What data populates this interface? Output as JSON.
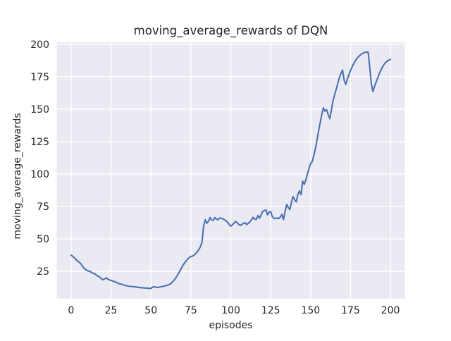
{
  "figure": {
    "background_color": "#ffffff"
  },
  "chart_data": {
    "type": "line",
    "title": "moving_average_rewards of DQN",
    "xlabel": "episodes",
    "ylabel": "moving_average_rewards",
    "style": "seaborn-darkgrid",
    "plot_background_color": "#EAEAF2",
    "grid_color": "#ffffff",
    "grid": true,
    "legend": false,
    "text_color": "#262626",
    "line_color": "#4C72B0",
    "xlim": [
      -9,
      209
    ],
    "ylim": [
      3.9,
      201.5
    ],
    "xticks": [
      0,
      25,
      50,
      75,
      100,
      125,
      150,
      175,
      200
    ],
    "yticks": [
      25,
      50,
      75,
      100,
      125,
      150,
      175,
      200
    ],
    "series": [
      {
        "name": "DQN moving average rewards",
        "x": [
          0,
          1,
          2,
          3,
          4,
          5,
          6,
          7,
          8,
          9,
          10,
          11,
          12,
          13,
          14,
          15,
          16,
          17,
          18,
          19,
          20,
          21,
          22,
          23,
          24,
          25,
          26,
          27,
          28,
          29,
          30,
          31,
          32,
          33,
          34,
          35,
          36,
          37,
          38,
          39,
          40,
          41,
          42,
          43,
          44,
          45,
          46,
          47,
          48,
          49,
          50,
          51,
          52,
          53,
          54,
          55,
          56,
          57,
          58,
          59,
          60,
          61,
          62,
          63,
          64,
          65,
          66,
          67,
          68,
          69,
          70,
          71,
          72,
          73,
          74,
          75,
          76,
          77,
          78,
          79,
          80,
          81,
          82,
          83,
          84,
          85,
          86,
          87,
          88,
          89,
          90,
          91,
          92,
          93,
          94,
          95,
          96,
          97,
          98,
          99,
          100,
          101,
          102,
          103,
          104,
          105,
          106,
          107,
          108,
          109,
          110,
          111,
          112,
          113,
          114,
          115,
          116,
          117,
          118,
          119,
          120,
          121,
          122,
          123,
          124,
          125,
          126,
          127,
          128,
          129,
          130,
          131,
          132,
          133,
          134,
          135,
          136,
          137,
          138,
          139,
          140,
          141,
          142,
          143,
          144,
          145,
          146,
          147,
          148,
          149,
          150,
          151,
          152,
          153,
          154,
          155,
          156,
          157,
          158,
          159,
          160,
          161,
          162,
          163,
          164,
          165,
          166,
          167,
          168,
          169,
          170,
          171,
          172,
          173,
          174,
          175,
          176,
          177,
          178,
          179,
          180,
          181,
          182,
          183,
          184,
          185,
          186,
          187,
          188,
          189,
          190,
          191,
          192,
          193,
          194,
          195,
          196,
          197,
          198,
          199,
          200
        ],
        "y": [
          37.5,
          36.6,
          35.5,
          34.3,
          33.0,
          32.0,
          31.0,
          29.2,
          27.5,
          26.6,
          25.7,
          25.2,
          24.8,
          24.0,
          23.3,
          23.0,
          21.9,
          21.2,
          20.5,
          19.3,
          18.5,
          19.2,
          20.0,
          19.0,
          18.4,
          18.0,
          17.6,
          17.1,
          16.7,
          16.1,
          15.5,
          15.2,
          14.9,
          14.5,
          14.1,
          13.8,
          13.6,
          13.4,
          13.3,
          13.2,
          13.1,
          12.9,
          12.7,
          12.5,
          12.4,
          12.3,
          12.2,
          12.1,
          12.0,
          11.9,
          11.8,
          12.9,
          13.1,
          12.7,
          12.6,
          12.8,
          13.1,
          13.3,
          13.5,
          13.9,
          14.1,
          14.6,
          15.2,
          16.2,
          17.5,
          19.0,
          20.8,
          22.8,
          25.0,
          27.3,
          29.5,
          31.4,
          33.0,
          34.5,
          35.6,
          36.3,
          36.8,
          37.4,
          38.6,
          40.2,
          41.8,
          44.0,
          47.6,
          60.0,
          64.8,
          62.0,
          63.5,
          66.5,
          64.5,
          64.2,
          66.5,
          65.2,
          64.8,
          66.2,
          65.9,
          65.5,
          64.8,
          63.9,
          62.8,
          61.2,
          59.8,
          60.8,
          62.2,
          63.5,
          62.4,
          61.2,
          60.4,
          61.2,
          62.1,
          62.4,
          61.0,
          62.0,
          63.2,
          64.8,
          66.6,
          65.2,
          65.0,
          68.0,
          66.0,
          68.5,
          71.2,
          71.8,
          72.4,
          68.6,
          70.8,
          71.0,
          67.2,
          66.0,
          65.6,
          66.2,
          65.6,
          66.8,
          68.9,
          64.9,
          71.0,
          76.5,
          74.2,
          72.6,
          78.2,
          82.6,
          80.1,
          78.5,
          84.2,
          87.0,
          84.1,
          94.5,
          92.0,
          95.5,
          100.2,
          104.0,
          108.2,
          109.5,
          114.4,
          119.5,
          126.0,
          133.4,
          139.5,
          146.0,
          151.0,
          148.4,
          149.6,
          145.8,
          142.6,
          149.2,
          156.4,
          161.0,
          165.2,
          169.8,
          174.2,
          177.4,
          180.1,
          172.2,
          169.0,
          173.2,
          176.6,
          179.8,
          182.6,
          185.0,
          187.2,
          189.0,
          190.4,
          191.6,
          192.6,
          193.2,
          193.7,
          193.9,
          194.0,
          182.5,
          169.5,
          163.6,
          167.4,
          170.8,
          174.0,
          177.2,
          180.0,
          182.4,
          184.4,
          186.0,
          187.0,
          187.8,
          188.2
        ]
      }
    ]
  }
}
